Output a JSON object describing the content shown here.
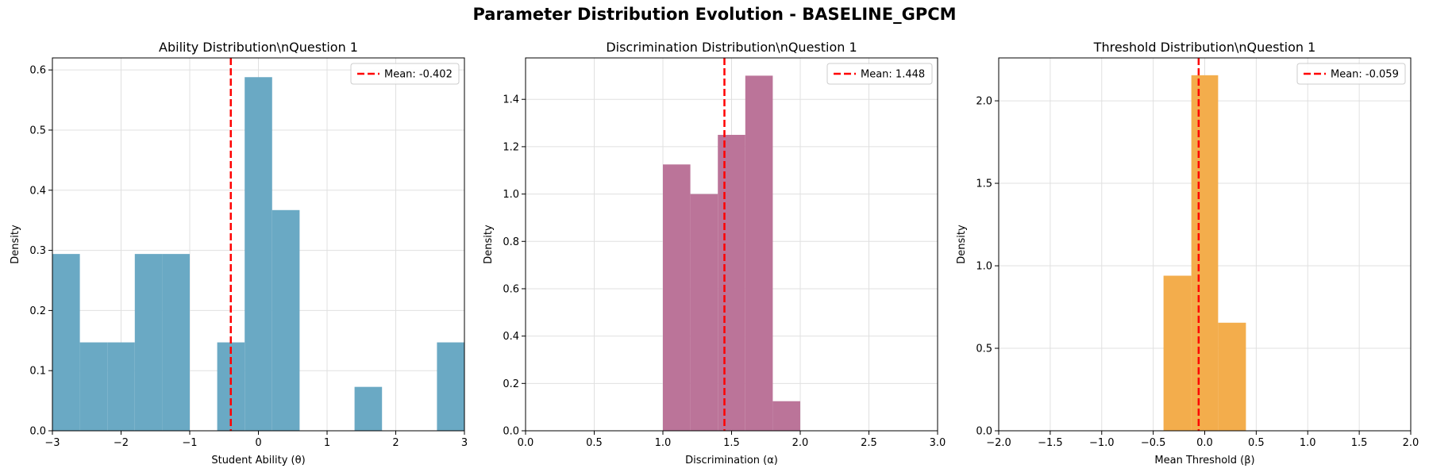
{
  "figure": {
    "title": "Parameter Distribution Evolution - BASELINE_GPCM"
  },
  "colors": {
    "mean_line": "#ff0000",
    "grid": "#e0e0e0"
  },
  "chart_data": [
    {
      "type": "bar",
      "title": "Ability Distribution\\nQuestion 1",
      "xlabel": "Student Ability (θ)",
      "ylabel": "Density",
      "xlim": [
        -3,
        3
      ],
      "ylim": [
        0,
        0.62
      ],
      "xticks": [
        -3,
        -2,
        -1,
        0,
        1,
        2,
        3
      ],
      "xtick_labels": [
        "−3",
        "−2",
        "−1",
        "0",
        "1",
        "2",
        "3"
      ],
      "yticks": [
        0,
        0.1,
        0.2,
        0.3,
        0.4,
        0.5,
        0.6
      ],
      "ytick_labels": [
        "0.0",
        "0.1",
        "0.2",
        "0.3",
        "0.4",
        "0.5",
        "0.6"
      ],
      "color": "#6aa9c4",
      "bins": [
        {
          "x0": -3.0,
          "x1": -2.6,
          "value": 0.294
        },
        {
          "x0": -2.6,
          "x1": -2.2,
          "value": 0.147
        },
        {
          "x0": -2.2,
          "x1": -1.8,
          "value": 0.147
        },
        {
          "x0": -1.8,
          "x1": -1.4,
          "value": 0.294
        },
        {
          "x0": -1.4,
          "x1": -1.0,
          "value": 0.294
        },
        {
          "x0": -0.6,
          "x1": -0.2,
          "value": 0.147
        },
        {
          "x0": -0.2,
          "x1": 0.2,
          "value": 0.588
        },
        {
          "x0": 0.2,
          "x1": 0.6,
          "value": 0.367
        },
        {
          "x0": 1.4,
          "x1": 1.8,
          "value": 0.073
        },
        {
          "x0": 2.6,
          "x1": 3.0,
          "value": 0.147
        }
      ],
      "mean": -0.402,
      "legend": "Mean: -0.402",
      "grid": true,
      "legend_position": "top-right"
    },
    {
      "type": "bar",
      "title": "Discrimination Distribution\\nQuestion 1",
      "xlabel": "Discrimination (α)",
      "ylabel": "Density",
      "xlim": [
        0,
        3
      ],
      "ylim": [
        0,
        1.575
      ],
      "xticks": [
        0,
        0.5,
        1,
        1.5,
        2,
        2.5,
        3
      ],
      "xtick_labels": [
        "0.0",
        "0.5",
        "1.0",
        "1.5",
        "2.0",
        "2.5",
        "3.0"
      ],
      "yticks": [
        0,
        0.2,
        0.4,
        0.6,
        0.8,
        1.0,
        1.2,
        1.4
      ],
      "ytick_labels": [
        "0.0",
        "0.2",
        "0.4",
        "0.6",
        "0.8",
        "1.0",
        "1.2",
        "1.4"
      ],
      "color": "#bb7499",
      "bins": [
        {
          "x0": 1.0,
          "x1": 1.2,
          "value": 1.125
        },
        {
          "x0": 1.2,
          "x1": 1.4,
          "value": 1.0
        },
        {
          "x0": 1.4,
          "x1": 1.6,
          "value": 1.25
        },
        {
          "x0": 1.6,
          "x1": 1.8,
          "value": 1.5
        },
        {
          "x0": 1.8,
          "x1": 2.0,
          "value": 0.125
        }
      ],
      "mean": 1.448,
      "legend": "Mean: 1.448",
      "grid": true,
      "legend_position": "top-right"
    },
    {
      "type": "bar",
      "title": "Threshold Distribution\\nQuestion 1",
      "xlabel": "Mean Threshold (β)",
      "ylabel": "Density",
      "xlim": [
        -2,
        2
      ],
      "ylim": [
        0,
        2.26
      ],
      "xticks": [
        -2,
        -1.5,
        -1,
        -0.5,
        0,
        0.5,
        1,
        1.5,
        2
      ],
      "xtick_labels": [
        "−2.0",
        "−1.5",
        "−1.0",
        "−0.5",
        "0.0",
        "0.5",
        "1.0",
        "1.5",
        "2.0"
      ],
      "yticks": [
        0,
        0.5,
        1.0,
        1.5,
        2.0
      ],
      "ytick_labels": [
        "0.0",
        "0.5",
        "1.0",
        "1.5",
        "2.0"
      ],
      "color": "#f3ad4c",
      "bins": [
        {
          "x0": -0.4,
          "x1": -0.13,
          "value": 0.94
        },
        {
          "x0": -0.13,
          "x1": 0.13,
          "value": 2.155
        },
        {
          "x0": 0.13,
          "x1": 0.4,
          "value": 0.655
        }
      ],
      "mean": -0.059,
      "legend": "Mean: -0.059",
      "grid": true,
      "legend_position": "top-right"
    }
  ]
}
